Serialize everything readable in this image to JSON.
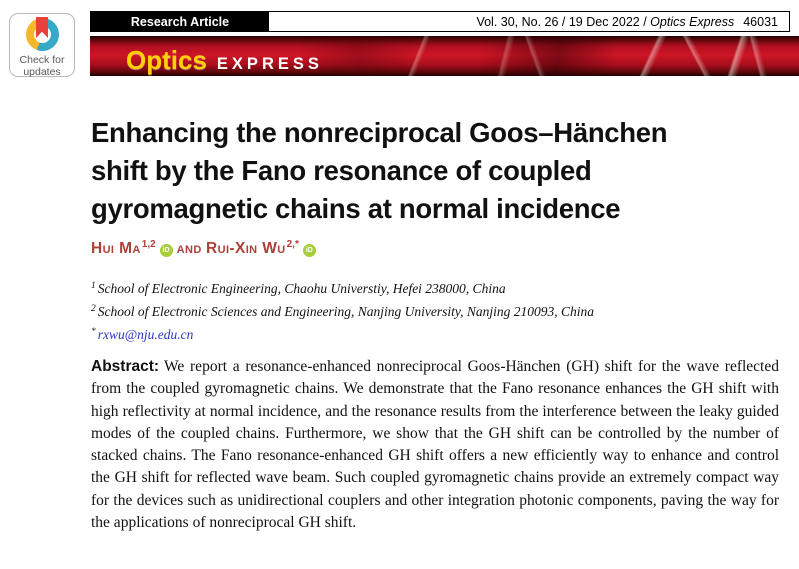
{
  "badge": {
    "line1": "Check for",
    "line2": "updates"
  },
  "header": {
    "article_type": "Research Article",
    "citation_prefix": "Vol. 30, No. 26 / 19 Dec 2022 / ",
    "citation_journal": "Optics Express",
    "citation_page": "46031"
  },
  "banner": {
    "word1": "Optics",
    "word2": "EXPRESS"
  },
  "title_lines": [
    "Enhancing the nonreciprocal Goos–Hänchen",
    "shift by the Fano resonance of coupled",
    "gyromagnetic chains at normal incidence"
  ],
  "authors": {
    "a1_name": "Hui Ma",
    "a1_sup": "1,2",
    "and_label": "and",
    "a2_name": "Rui-Xin Wu",
    "a2_sup": "2,*",
    "orcid_label": "iD"
  },
  "affiliations": [
    {
      "sup": "1",
      "text": "School of Electronic Engineering, Chaohu Universtiy, Hefei 238000, China"
    },
    {
      "sup": "2",
      "text": "School of Electronic Sciences and Engineering, Nanjing University, Nanjing 210093, China"
    }
  ],
  "email": {
    "sup": "*",
    "text": "rxwu@nju.edu.cn"
  },
  "abstract": {
    "label": "Abstract:",
    "text": "We report a resonance-enhanced nonreciprocal Goos-Hänchen (GH) shift for the wave reflected from the coupled gyromagnetic chains. We demonstrate that the Fano resonance enhances the GH shift with high reflectivity at normal incidence, and the resonance results from the interference between the leaky guided modes of the coupled chains. Furthermore, we show that the GH shift can be controlled by the number of stacked chains. The Fano resonance-enhanced GH shift offers a new efficiently way to enhance and control the GH shift for reflected wave beam. Such coupled gyromagnetic chains provide an extremely compact way for the devices such as unidirectional couplers and other integration photonic components, paving the way for the applications of nonreciprocal GH shift."
  },
  "colors": {
    "banner-red": "#c51222",
    "banner-dark": "#2d0406",
    "optics-yellow": "#ffd005",
    "author-red": "#ab4139",
    "link-blue": "#2936c8",
    "orcid-green": "#a6ce39",
    "crossmark-yellow": "#f4b829",
    "crossmark-teal": "#35aac8",
    "crossmark-red": "#e8413c",
    "badge-gray": "#58595b"
  }
}
